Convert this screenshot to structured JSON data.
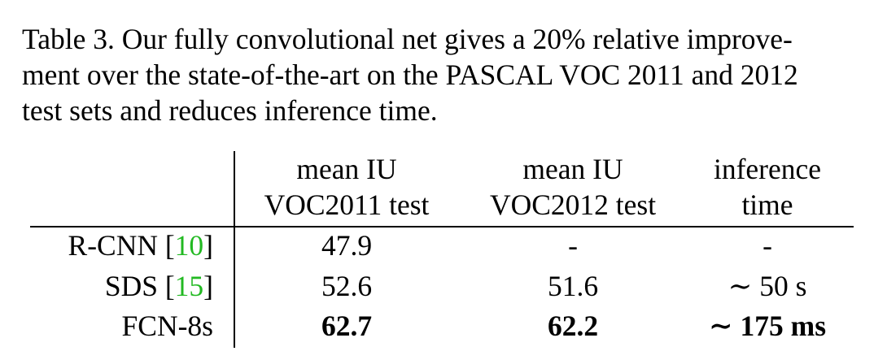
{
  "caption": {
    "line1": "Table 3.  Our fully convolutional net gives a 20% relative improve-",
    "line2": "ment over the state-of-the-art on the PASCAL VOC 2011 and 2012",
    "line3": "test sets and reduces inference time."
  },
  "table": {
    "headers": [
      {
        "line1": "mean IU",
        "line2": "VOC2011 test"
      },
      {
        "line1": "mean IU",
        "line2": "VOC2012 test"
      },
      {
        "line1": "inference",
        "line2": "time"
      }
    ],
    "rows": [
      {
        "method": "R-CNN",
        "cite": "10",
        "voc2011": "47.9",
        "voc2012": "-",
        "time": "-"
      },
      {
        "method": "SDS",
        "cite": "15",
        "voc2011": "52.6",
        "voc2012": "51.6",
        "time": "∼ 50 s"
      },
      {
        "method": "FCN-8s",
        "cite": "",
        "voc2011": "62.7",
        "voc2012": "62.2",
        "time": "∼ 175 ms"
      }
    ],
    "cite_color": "#22b922"
  }
}
